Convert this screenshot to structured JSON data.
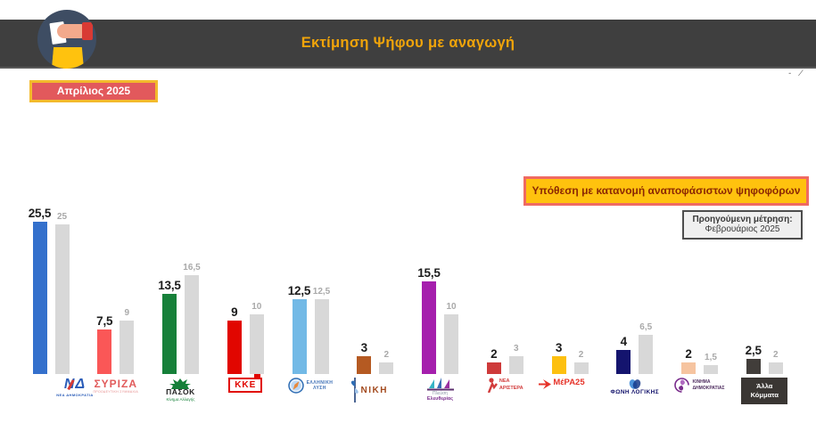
{
  "header": {
    "title": "Εκτίμηση Ψήφου με αναγωγή"
  },
  "date_badge": "Απρίλιος 2025",
  "assumption_note": "Υπόθεση με κατανομή αναποφάσιστων ψηφοφόρων",
  "previous_note": {
    "line1": "Προηγούμενη μέτρηση:",
    "line2": "Φεβρουάριος 2025"
  },
  "decorative_marks": "- ⁄",
  "colors": {
    "header_bg": "#3f3f3f",
    "title_text": "#f0a40a",
    "badge_bg": "#e2595c",
    "badge_border": "#f3ba2c",
    "note_bg": "#ffc20e",
    "note_border": "#ef6a62",
    "previous_bar": "#d8d8d8"
  },
  "chart_data": {
    "type": "bar",
    "title": "Εκτίμηση Ψήφου με αναγωγή",
    "subtitle": "Απρίλιος 2025",
    "note": "Υπόθεση με κατανομή αναποφάσιστων ψηφοφόρων",
    "comparison_note": "Προηγούμενη μέτρηση: Φεβρουάριος 2025",
    "ylim": [
      0,
      28
    ],
    "grid": false,
    "value_label_format": "decimal-comma",
    "categories": [
      "ΝΕΑ ΔΗΜΟΚΡΑΤΙΑ",
      "ΣΥΡΙΖΑ",
      "ΠΑΣΟΚ",
      "ΚΚΕ",
      "ΕΛΛΗΝΙΚΗ ΛΥΣΗ",
      "ΝΙΚΗ",
      "Πλεύση Ελευθερίας",
      "ΝΕΑ ΑΡΙΣΤΕΡΑ",
      "ΜέΡΑ25",
      "ΦΩΝΗ ΛΟΓΙΚΗΣ",
      "ΚΙΝΗΜΑ ΔΗΜΟΚΡΑΤΙΑΣ",
      "Άλλα Κόμματα"
    ],
    "series": [
      {
        "name": "Απρίλιος 2025",
        "values": [
          25.5,
          7.5,
          13.5,
          9,
          12.5,
          3,
          15.5,
          2,
          3,
          4,
          2,
          2.5
        ]
      },
      {
        "name": "Φεβρουάριος 2025",
        "color": "#d8d8d8",
        "values": [
          25,
          9,
          16.5,
          10,
          12.5,
          2,
          10,
          3,
          2,
          6.5,
          1.5,
          2
        ]
      }
    ],
    "parties": [
      {
        "name": "ΝΕΑ ΔΗΜΟΚΡΑΤΙΑ",
        "current": 25.5,
        "previous": 25,
        "color": "#3470cc",
        "logo": {
          "type": "nd",
          "lines": [
            "ΝΔ",
            "ΝΕΑ ΔΗΜΟΚΡΑΤΙΑ"
          ]
        }
      },
      {
        "name": "ΣΥΡΙΖΑ",
        "current": 7.5,
        "previous": 9,
        "color": "#fa5757",
        "logo": {
          "type": "syriza",
          "lines": [
            "ΣΥΡΙΖΑ",
            "ΠΡΟΟΔΕΥΤΙΚΗ ΣΥΜΜΑΧΙΑ"
          ]
        }
      },
      {
        "name": "ΠΑΣΟΚ",
        "current": 13.5,
        "previous": 16.5,
        "color": "#168039",
        "logo": {
          "type": "pasok",
          "lines": [
            "ΠΑΣΟΚ",
            "Κίνημα Αλλαγής"
          ]
        }
      },
      {
        "name": "ΚΚΕ",
        "current": 9,
        "previous": 10,
        "color": "#e10600",
        "logo": {
          "type": "kke",
          "lines": [
            "ΚΚΕ"
          ]
        }
      },
      {
        "name": "ΕΛΛΗΝΙΚΗ ΛΥΣΗ",
        "current": 12.5,
        "previous": 12.5,
        "color": "#72b9e6",
        "logo": {
          "type": "el",
          "lines": [
            "ΕΛΛΗΝΙΚΗ",
            "ΛΥΣΗ"
          ]
        }
      },
      {
        "name": "ΝΙΚΗ",
        "current": 3,
        "previous": 2,
        "color": "#b55a22",
        "logo": {
          "type": "niki",
          "lines": [
            "ΝΙΚΗ"
          ]
        }
      },
      {
        "name": "Πλεύση Ελευθερίας",
        "current": 15.5,
        "previous": 10,
        "color": "#a51fad",
        "logo": {
          "type": "plefsi",
          "lines": [
            "Πλεύση",
            "Ελευθερίας"
          ]
        }
      },
      {
        "name": "ΝΕΑ ΑΡΙΣΤΕΡΑ",
        "current": 2,
        "previous": 3,
        "color": "#ce3a3a",
        "logo": {
          "type": "na",
          "lines": [
            "ΝΕΑ",
            "ΑΡΙΣΤΕΡΑ"
          ]
        }
      },
      {
        "name": "ΜέΡΑ25",
        "current": 3,
        "previous": 2,
        "color": "#fdc010",
        "logo": {
          "type": "mera",
          "lines": [
            "ΜέΡΑ25"
          ]
        }
      },
      {
        "name": "ΦΩΝΗ ΛΟΓΙΚΗΣ",
        "current": 4,
        "previous": 6.5,
        "color": "#14146e",
        "logo": {
          "type": "foni",
          "lines": [
            "ΦΩΝΗ ΛΟΓΙΚΗΣ"
          ]
        }
      },
      {
        "name": "ΚΙΝΗΜΑ ΔΗΜΟΚΡΑΤΙΑΣ",
        "current": 2,
        "previous": 1.5,
        "color": "#f6c4a0",
        "logo": {
          "type": "kinima",
          "lines": [
            "ΚΙΝΗΜΑ",
            "ΔΗΜΟΚΡΑΤΙΑΣ"
          ]
        }
      },
      {
        "name": "Άλλα Κόμματα",
        "current": 2.5,
        "previous": 2,
        "color": "#413d3a",
        "logo": {
          "type": "alla",
          "lines": [
            "Άλλα",
            "Κόμματα"
          ]
        }
      }
    ]
  }
}
